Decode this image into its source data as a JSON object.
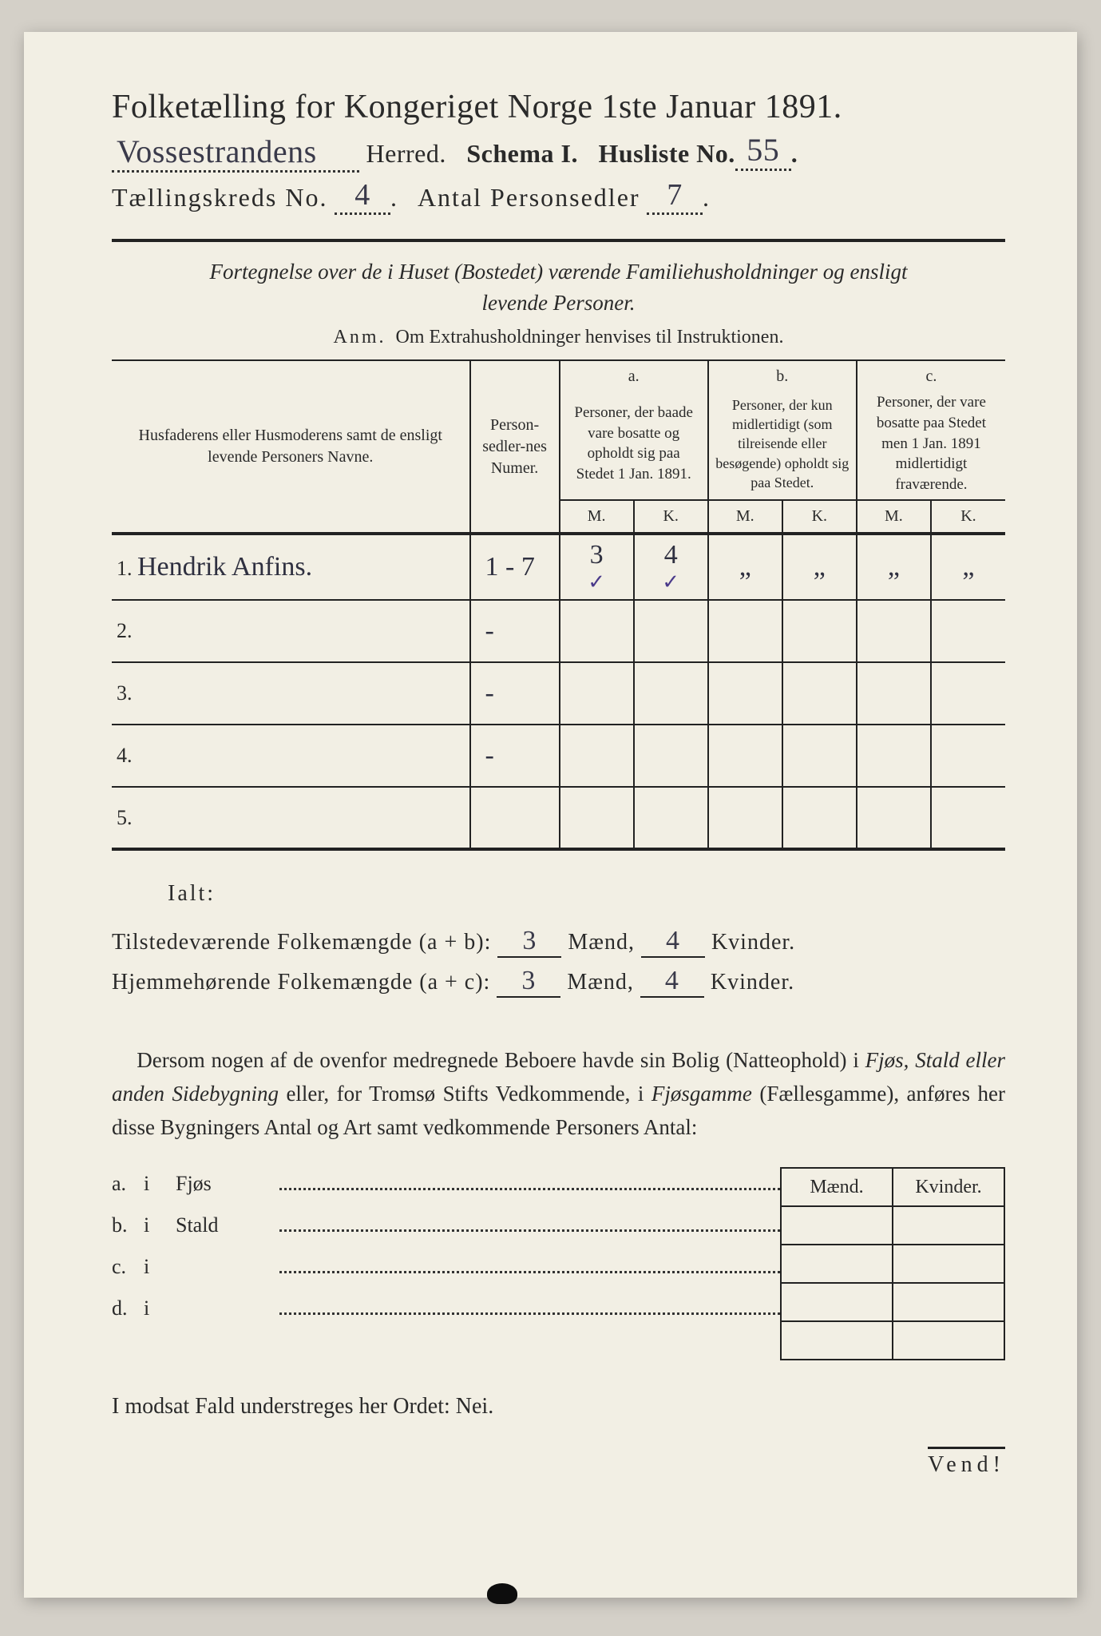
{
  "page": {
    "background": "#d4d0c8",
    "paper": "#f2efe4",
    "ink": "#2a2a2a",
    "hand_ink": "#3a3a4a",
    "tick_ink": "#4a3a8a"
  },
  "header": {
    "title": "Folketælling for Kongeriget Norge 1ste Januar 1891.",
    "herred_hand": "Vossestrandens",
    "herred_label": "Herred.",
    "schema_label": "Schema I.",
    "husliste_label": "Husliste No.",
    "husliste_no": "55",
    "kreds_label": "Tællingskreds No.",
    "kreds_no": "4",
    "antal_label": "Antal Personsedler",
    "antal_val": "7"
  },
  "subhead": {
    "line1": "Fortegnelse over de i Huset (Bostedet) værende Familiehusholdninger og ensligt",
    "line2": "levende Personer.",
    "anm_label": "Anm.",
    "anm_text": "Om Extrahusholdninger henvises til Instruktionen."
  },
  "table": {
    "col_names": "Husfaderens eller Husmoderens samt de ensligt levende Personers Navne.",
    "col_num": "Person-sedler-nes Numer.",
    "col_a_top": "a.",
    "col_a": "Personer, der baade vare bosatte og opholdt sig paa Stedet 1 Jan. 1891.",
    "col_b_top": "b.",
    "col_b": "Personer, der kun midlertidigt (som tilreisende eller besøgende) opholdt sig paa Stedet.",
    "col_c_top": "c.",
    "col_c": "Personer, der vare bosatte paa Stedet men 1 Jan. 1891 midlertidigt fraværende.",
    "mk_m": "M.",
    "mk_k": "K.",
    "rows": [
      {
        "n": "1.",
        "name": "Hendrik Anfins.",
        "num": "1 - 7",
        "a_m": "3",
        "a_k": "4",
        "b_m": "„",
        "b_k": "„",
        "c_m": "„",
        "c_k": "„",
        "tick_m": "✓",
        "tick_k": "✓"
      },
      {
        "n": "2.",
        "name": "",
        "num": "-",
        "a_m": "",
        "a_k": "",
        "b_m": "",
        "b_k": "",
        "c_m": "",
        "c_k": ""
      },
      {
        "n": "3.",
        "name": "",
        "num": "-",
        "a_m": "",
        "a_k": "",
        "b_m": "",
        "b_k": "",
        "c_m": "",
        "c_k": ""
      },
      {
        "n": "4.",
        "name": "",
        "num": "-",
        "a_m": "",
        "a_k": "",
        "b_m": "",
        "b_k": "",
        "c_m": "",
        "c_k": ""
      },
      {
        "n": "5.",
        "name": "",
        "num": "",
        "a_m": "",
        "a_k": "",
        "b_m": "",
        "b_k": "",
        "c_m": "",
        "c_k": ""
      }
    ]
  },
  "ialt": {
    "label": "Ialt:",
    "row1_label": "Tilstedeværende Folkemængde (a + b):",
    "row2_label": "Hjemmehørende Folkemængde (a + c):",
    "maend": "Mænd,",
    "kvinder": "Kvinder.",
    "row1_m": "3",
    "row1_k": "4",
    "row2_m": "3",
    "row2_k": "4"
  },
  "para": {
    "text": "Dersom nogen af de ovenfor medregnede Beboere havde sin Bolig (Natteophold) i Fjøs, Stald eller anden Sidebygning eller, for Tromsø Stifts Vedkommende, i Fjøsgamme (Fællesgamme), anføres her disse Bygningers Antal og Art samt vedkommende Personers Antal:"
  },
  "mini": {
    "head_m": "Mænd.",
    "head_k": "Kvinder.",
    "rows": [
      {
        "tag": "a.",
        "i": "i",
        "lab": "Fjøs"
      },
      {
        "tag": "b.",
        "i": "i",
        "lab": "Stald"
      },
      {
        "tag": "c.",
        "i": "i",
        "lab": ""
      },
      {
        "tag": "d.",
        "i": "i",
        "lab": ""
      }
    ]
  },
  "footer": {
    "nei": "I modsat Fald understreges her Ordet: Nei.",
    "vend": "Vend!"
  }
}
